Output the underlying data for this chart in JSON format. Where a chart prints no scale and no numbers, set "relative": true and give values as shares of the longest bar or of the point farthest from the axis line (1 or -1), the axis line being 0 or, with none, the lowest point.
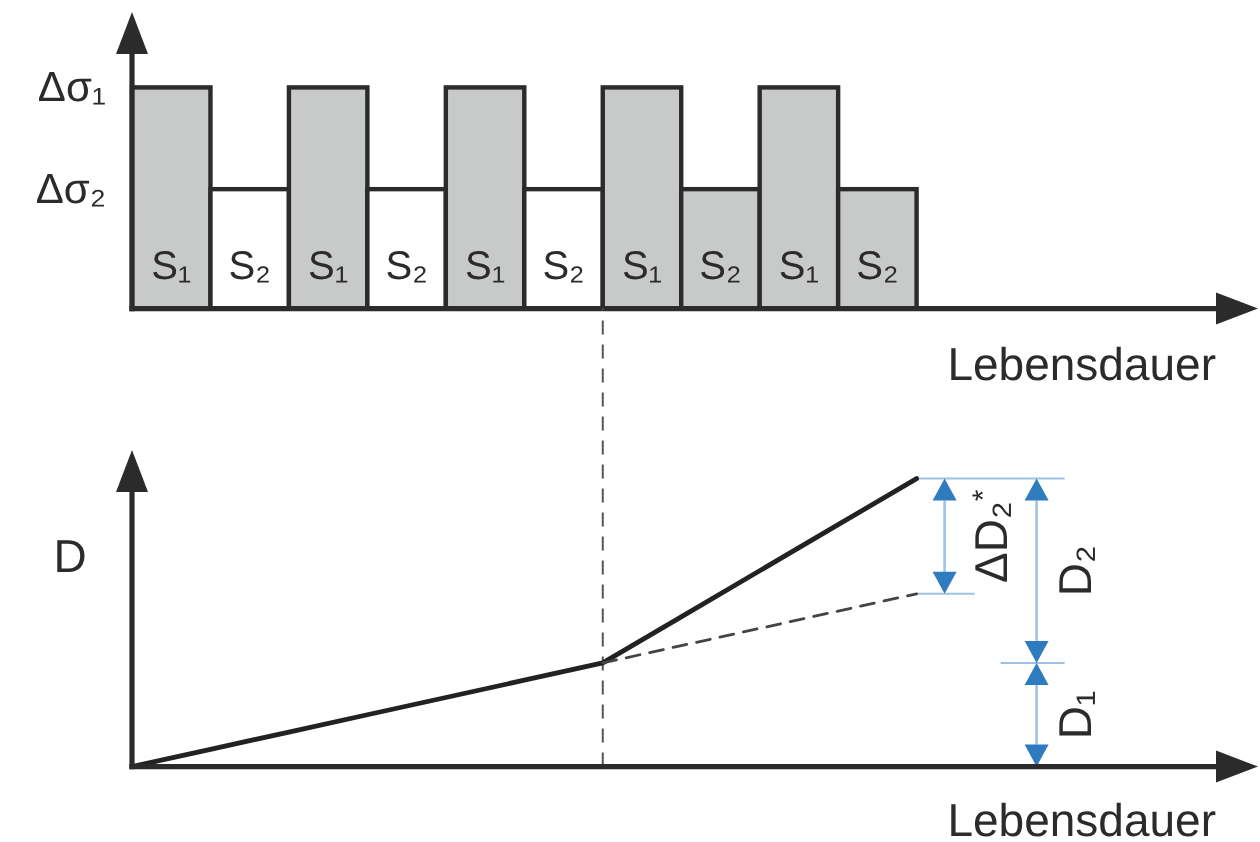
{
  "chart_data": [
    {
      "type": "bar",
      "categories": [
        "S₁",
        "S₂",
        "S₁",
        "S₂",
        "S₁",
        "S₂",
        "S₁",
        "S₂",
        "S₁",
        "S₂"
      ],
      "values": [
        1,
        0.54,
        1,
        0.54,
        1,
        0.54,
        1,
        0.54,
        1,
        0.54
      ],
      "colors": [
        "#c8c9c9",
        "#ffffff",
        "#c8c9c9",
        "#ffffff",
        "#c8c9c9",
        "#ffffff",
        "#c8c9c9",
        "#c8c9c9",
        "#c8c9c9",
        "#c8c9c9"
      ],
      "relative": true,
      "xlabel": "Lebensdauer",
      "annotations": [
        "Δσ₁",
        "Δσ₂"
      ]
    },
    {
      "type": "line",
      "categories": [
        null,
        null,
        null,
        null,
        null,
        null,
        null,
        null,
        null,
        null,
        null
      ],
      "series": [
        {
          "color": "#222222",
          "values": [
            0,
            0.06,
            0.12,
            0.18,
            0.24,
            0.3,
            0.36,
            0.52,
            0.68,
            0.84,
            1
          ]
        },
        {
          "values": [
            null,
            null,
            null,
            null,
            null,
            null,
            0.36,
            0.42,
            0.48,
            0.54,
            0.6
          ],
          "color": "#444444",
          "line_style": "dashed"
        }
      ],
      "relative": true,
      "ylabel": "D",
      "xlabel": "Lebensdauer",
      "annotations": [
        "ΔD₂$^{*}$",
        "D₂",
        "D₁"
      ]
    }
  ]
}
